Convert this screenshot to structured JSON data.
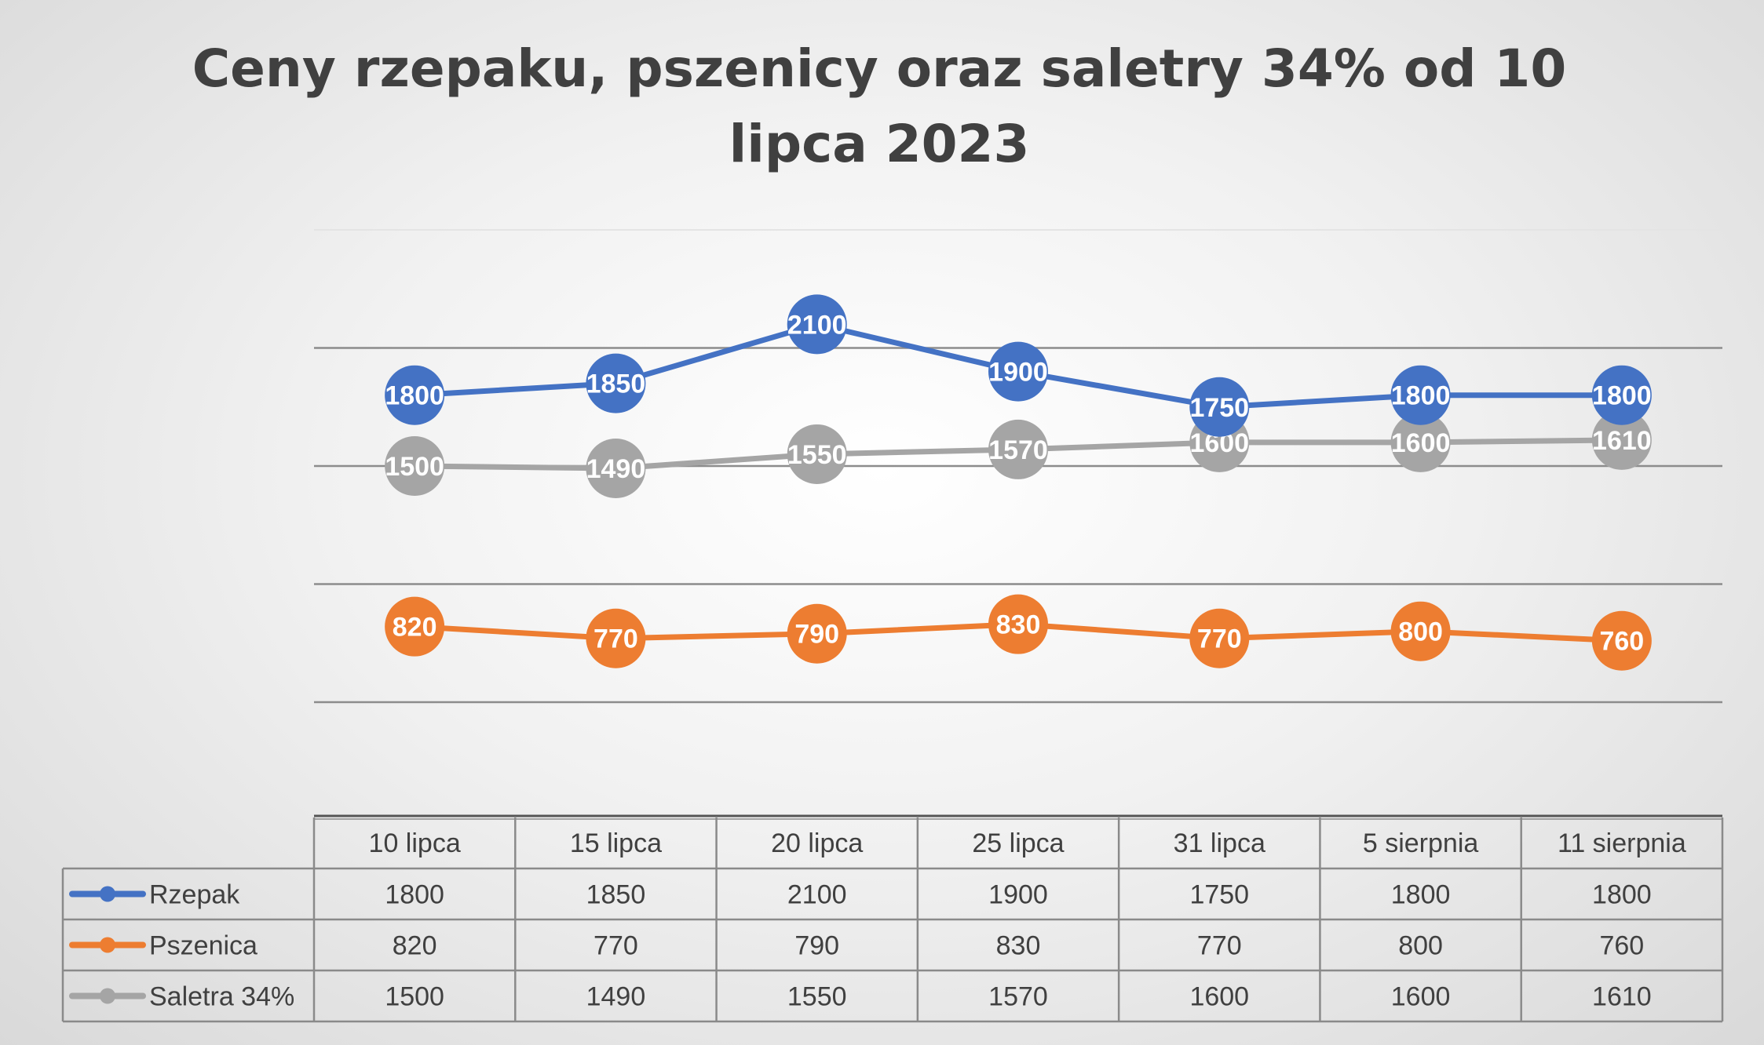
{
  "chart_data": {
    "type": "line",
    "title": "Ceny rzepaku, pszenicy oraz saletry 34% od 10 lipca 2023",
    "categories": [
      "10 lipca",
      "15 lipca",
      "20 lipca",
      "25 lipca",
      "31 lipca",
      "5 sierpnia",
      "11 sierpnia"
    ],
    "series": [
      {
        "name": "Rzepak",
        "color": "#4472C4",
        "values": [
          1800,
          1850,
          2100,
          1900,
          1750,
          1800,
          1800
        ]
      },
      {
        "name": "Pszenica",
        "color": "#ED7D31",
        "values": [
          820,
          770,
          790,
          830,
          770,
          800,
          760
        ]
      },
      {
        "name": "Saletra 34%",
        "color": "#A5A5A5",
        "values": [
          1500,
          1490,
          1550,
          1570,
          1600,
          1600,
          1610
        ]
      }
    ],
    "ylim": [
      500,
      2500
    ],
    "grid": true,
    "data_labels": true,
    "data_table": true
  }
}
